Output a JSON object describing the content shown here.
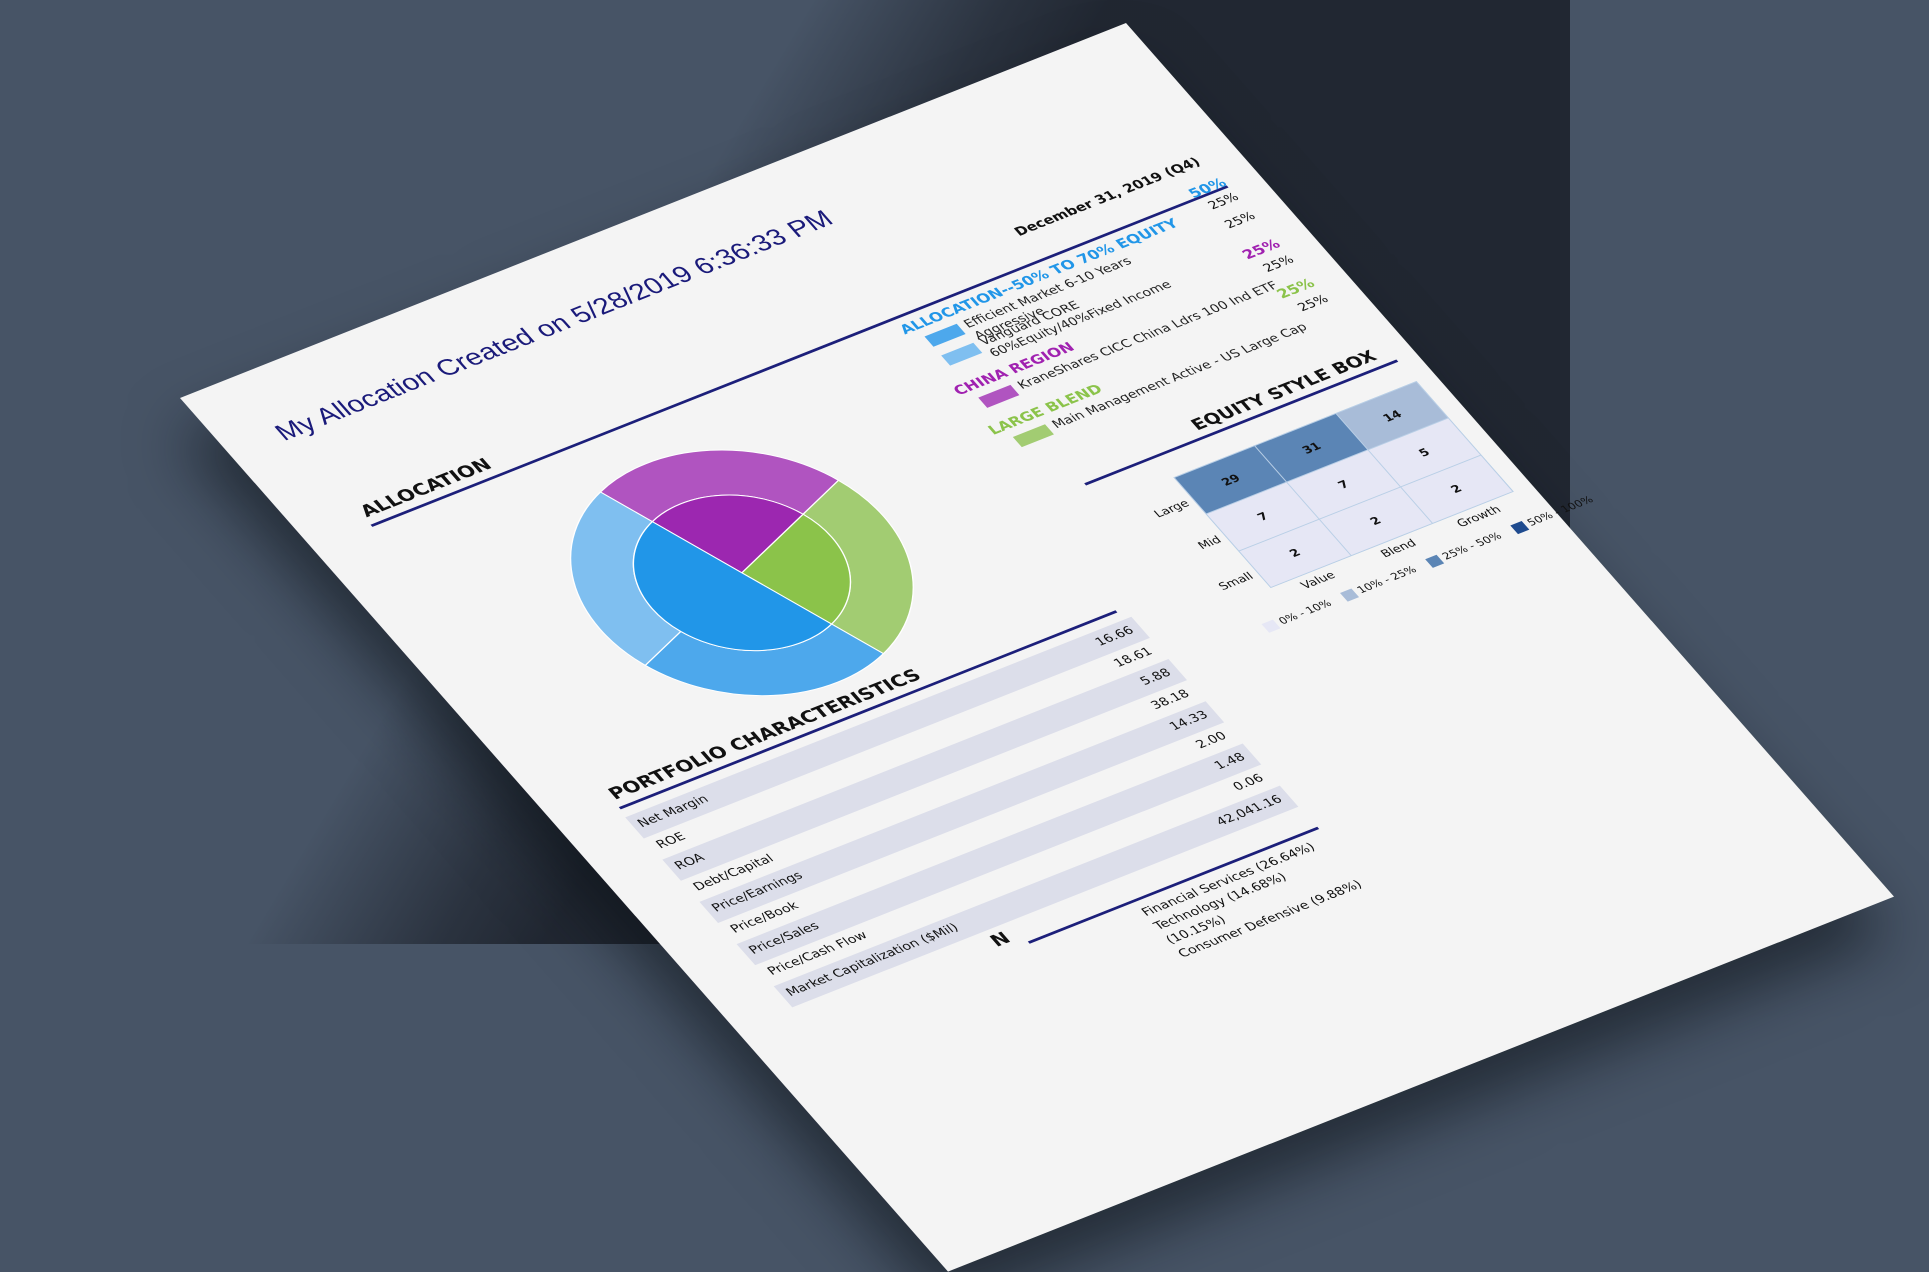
{
  "document": {
    "title": "My Allocation Created on 5/28/2019 6:36:33 PM",
    "as_of_date": "December 31, 2019 (Q4)"
  },
  "allocation": {
    "heading": "ALLOCATION",
    "groups": [
      {
        "label": "ALLOCATION--50% TO 70% EQUITY",
        "total": "50%",
        "color": "#2196e8",
        "items": [
          {
            "name": "Efficient Market 6-10 Years Aggressive",
            "weight": "25%",
            "color": "#4da8ec"
          },
          {
            "name": "Vanguard CORE 60%Equity/40%Fixed Income",
            "weight": "25%",
            "color": "#7fbff0"
          }
        ]
      },
      {
        "label": "CHINA REGION",
        "total": "25%",
        "color": "#a021b0",
        "items": [
          {
            "name": "KraneShares CICC China Ldrs 100 Ind ETF",
            "weight": "25%",
            "color": "#b054c0"
          }
        ]
      },
      {
        "label": "LARGE BLEND",
        "total": "25%",
        "color": "#8bc34a",
        "items": [
          {
            "name": "Main Management Active - US Large Cap",
            "weight": "25%",
            "color": "#a2cc72"
          }
        ]
      }
    ]
  },
  "chart_data": {
    "type": "pie",
    "title": "ALLOCATION",
    "subtype": "nested-donut",
    "inner_ring": {
      "categories": [
        "ALLOCATION--50% TO 70% EQUITY",
        "CHINA REGION",
        "LARGE BLEND"
      ],
      "values": [
        50,
        25,
        25
      ],
      "colors": [
        "#2196e8",
        "#9c27b0",
        "#8bc34a"
      ]
    },
    "outer_ring": {
      "categories": [
        "Efficient Market 6-10 Years Aggressive",
        "Vanguard CORE 60%Equity/40%Fixed Income",
        "KraneShares CICC China Ldrs 100 Ind ETF",
        "Main Management Active - US Large Cap"
      ],
      "values": [
        25,
        25,
        25,
        25
      ],
      "colors": [
        "#4da8ec",
        "#7fbff0",
        "#b054c0",
        "#a2cc72"
      ]
    }
  },
  "portfolio_characteristics": {
    "heading": "PORTFOLIO CHARACTERISTICS",
    "rows": [
      {
        "label": "Net Margin",
        "value": "16.66"
      },
      {
        "label": "ROE",
        "value": "18.61"
      },
      {
        "label": "ROA",
        "value": "5.88"
      },
      {
        "label": "Debt/Capital",
        "value": "38.18"
      },
      {
        "label": "Price/Earnings",
        "value": "14.33"
      },
      {
        "label": "Price/Book",
        "value": "2.00"
      },
      {
        "label": "Price/Sales",
        "value": "1.48"
      },
      {
        "label": "Price/Cash Flow",
        "value": "0.06"
      },
      {
        "label": "Market Capitalization ($Mil)",
        "value": "42,041.16"
      }
    ]
  },
  "equity_style_box": {
    "heading": "EQUITY STYLE BOX",
    "row_labels": [
      "Large",
      "Mid",
      "Small"
    ],
    "col_labels": [
      "Value",
      "Blend",
      "Growth"
    ],
    "cells": [
      [
        {
          "v": "29",
          "c": "#5b85b5"
        },
        {
          "v": "31",
          "c": "#5b85b5"
        },
        {
          "v": "14",
          "c": "#a8bcd8"
        }
      ],
      [
        {
          "v": "7",
          "c": "#e6e7f5"
        },
        {
          "v": "7",
          "c": "#e6e7f5"
        },
        {
          "v": "5",
          "c": "#e6e7f5"
        }
      ],
      [
        {
          "v": "2",
          "c": "#e6e7f5"
        },
        {
          "v": "2",
          "c": "#e6e7f5"
        },
        {
          "v": "2",
          "c": "#e6e7f5"
        }
      ]
    ],
    "legend": [
      {
        "label": "0% - 10%",
        "color": "#e6e7f5"
      },
      {
        "label": "10% - 25%",
        "color": "#a8bcd8"
      },
      {
        "label": "25% - 50%",
        "color": "#5b85b5"
      },
      {
        "label": "50% - 100%",
        "color": "#1f4b8f"
      }
    ]
  },
  "sectors": {
    "heading_partial": "N",
    "items": [
      "Financial Services (26.64%)",
      "Technology (14.68%)",
      "(10.15%)",
      "Consumer Defensive (9.88%)"
    ]
  },
  "colors": {
    "background": "#475466",
    "paper": "#f4f4f4",
    "title": "#1a1a7a",
    "rule": "#1c1f7a"
  }
}
